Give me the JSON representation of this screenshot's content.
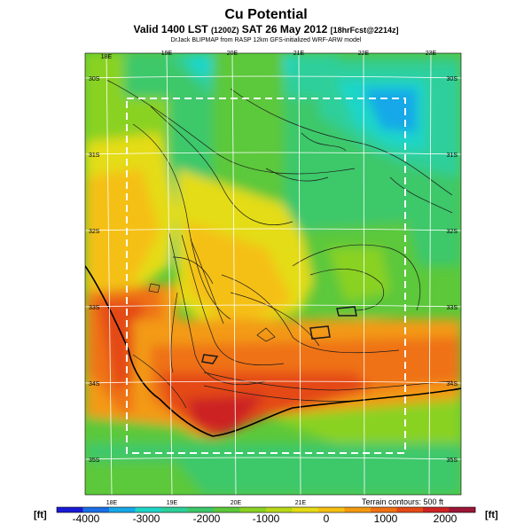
{
  "title": "Cu Potential",
  "valid_line": {
    "prefix": "Valid 1400 LST",
    "utc": "(1200Z)",
    "date": "SAT 26 May 2012",
    "forecast": "[18hrFcst@2214z]"
  },
  "source": "DrJack BLIPMAP from RASP 12km GFS-initialized WRF-ARW model",
  "map": {
    "lon_labels_top": [
      "18E",
      "19E",
      "20E",
      "21E",
      "22E",
      "23E"
    ],
    "lon_labels_bottom": [
      "18E",
      "19E",
      "20E",
      "21E"
    ],
    "lat_labels_left": [
      "30S",
      "31S",
      "32S",
      "33S",
      "34S",
      "35S"
    ],
    "lat_labels_right": [
      "30S",
      "31S",
      "32S",
      "33S",
      "34S",
      "35S"
    ],
    "domain_box": "dashed white inner domain"
  },
  "colorbar": {
    "unit_left": "[ft]",
    "unit_right": "[ft]",
    "tick_labels": [
      "-4000",
      "-3000",
      "-2000",
      "-1000",
      "0",
      "1000",
      "2000"
    ],
    "min": -4400,
    "max": 2400,
    "colors": [
      "#1a1ad6",
      "#1a6fe6",
      "#18a8e8",
      "#1ed6c8",
      "#2ecf9a",
      "#3cc86a",
      "#5cc83a",
      "#8ad224",
      "#b8d818",
      "#e4dc16",
      "#f5c012",
      "#f39a12",
      "#ef7214",
      "#e44a18",
      "#cc2424",
      "#9c1636"
    ],
    "note": "Terrain contours: 500 ft"
  },
  "colors": {
    "positive_high": "#e43c1c",
    "zero": "#f0d214",
    "negative_mid": "#3cc86a",
    "negative_low": "#18b4e6"
  }
}
